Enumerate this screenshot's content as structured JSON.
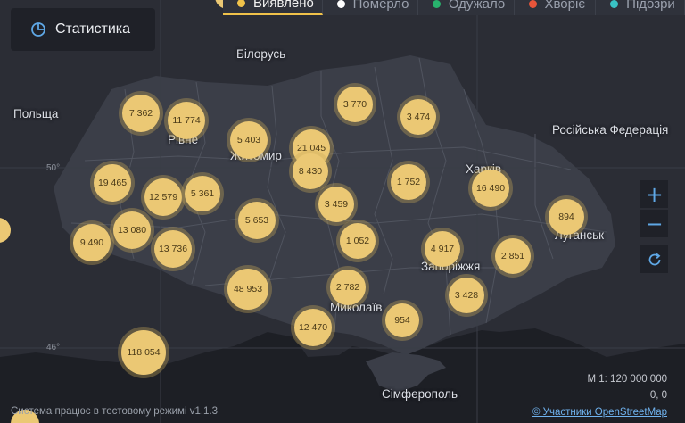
{
  "tabs": [
    {
      "label": "Виявлено",
      "color": "#f0c24a",
      "active": true
    },
    {
      "label": "Померло",
      "color": "#ffffff",
      "active": false
    },
    {
      "label": "Одужало",
      "color": "#28b36d",
      "active": false
    },
    {
      "label": "Хворіє",
      "color": "#e8553a",
      "active": false
    },
    {
      "label": "Підозри",
      "color": "#39c2c4",
      "active": false
    }
  ],
  "stats_button": {
    "label": "Статистика",
    "icon": "pie-chart-icon"
  },
  "controls": {
    "zoom_in": "+",
    "zoom_out": "−",
    "reset_icon": "refresh-icon"
  },
  "places": {
    "belarus": "Білорусь",
    "poland": "Польща",
    "russia": "Російська Федерація",
    "rivne": "Рівне",
    "zhytomyr": "Житомир",
    "kharkiv": "Харків",
    "luhansk": "Луганськ",
    "zaporizhzhia": "Запоріжжя",
    "mykolaiv": "Миколаїв",
    "simferopol": "Сімферополь"
  },
  "latitude_labels": {
    "lat50": "50°",
    "lat46": "46°"
  },
  "clusters": [
    "7 362",
    "11 774",
    "5 403",
    "21 045",
    "3 770",
    "3 474",
    "19 465",
    "12 579",
    "5 361",
    "8 430",
    "1 752",
    "16 490",
    "3 459",
    "5 653",
    "13 080",
    "9 490",
    "13 736",
    "1 052",
    "4 917",
    "894",
    "2 851",
    "48 953",
    "2 782",
    "3 428",
    "12 470",
    "954",
    "118 054"
  ],
  "footer": {
    "status": "Система працює в тестовому режимі v1.1.3",
    "scale": "М 1: 120 000 000",
    "coords": "0, 0",
    "attribution": "© Участники OpenStreetMap"
  }
}
